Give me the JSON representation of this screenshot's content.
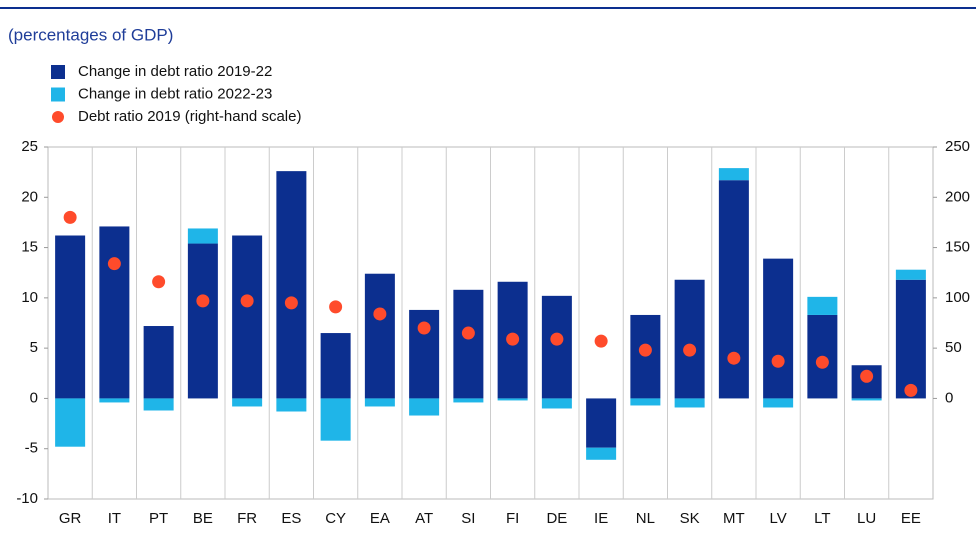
{
  "chart_data": {
    "type": "bar",
    "subtitle": "(percentages of GDP)",
    "categories": [
      "GR",
      "IT",
      "PT",
      "BE",
      "FR",
      "ES",
      "CY",
      "EA",
      "AT",
      "SI",
      "FI",
      "DE",
      "IE",
      "NL",
      "SK",
      "MT",
      "LV",
      "LT",
      "LU",
      "EE"
    ],
    "stacked": true,
    "series": [
      {
        "name": "Change in debt ratio 2019-22",
        "color": "#0c2f8f",
        "values": [
          16.2,
          17.1,
          7.2,
          15.4,
          16.2,
          22.6,
          6.5,
          12.4,
          8.8,
          10.8,
          11.6,
          10.2,
          -4.9,
          8.3,
          11.8,
          21.7,
          13.9,
          8.3,
          3.3,
          11.8
        ]
      },
      {
        "name": "Change in debt ratio 2022-23",
        "color": "#1fb5e8",
        "values": [
          -4.8,
          -0.4,
          -1.2,
          1.5,
          -0.8,
          -1.3,
          -4.2,
          -0.8,
          -1.7,
          -0.4,
          -0.2,
          -1.0,
          -1.2,
          -0.7,
          -0.9,
          1.2,
          -0.9,
          1.8,
          -0.2,
          1.0
        ]
      },
      {
        "name": "Debt ratio 2019 (right-hand scale)",
        "color": "#ff4b2b",
        "type": "scatter",
        "axis": "y2",
        "values": [
          180,
          134,
          116,
          97,
          97,
          95,
          91,
          84,
          70,
          65,
          59,
          59,
          57,
          48,
          48,
          40,
          37,
          36,
          22,
          8
        ]
      }
    ],
    "ylim": [
      -10,
      25
    ],
    "yticks": [
      -10,
      -5,
      0,
      5,
      10,
      15,
      20,
      25
    ],
    "y2lim": [
      -100,
      250
    ],
    "y2ticks": [
      0,
      50,
      100,
      150,
      200,
      250
    ]
  }
}
